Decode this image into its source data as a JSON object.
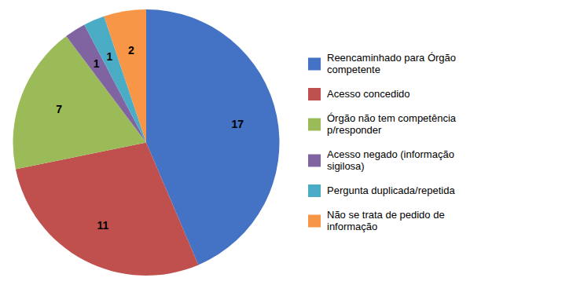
{
  "chart_data": {
    "type": "pie",
    "categories": [
      "Reencaminhado para Órgão\ncompetente",
      "Acesso concedido",
      "Órgão não tem competência\np/responder",
      "Acesso negado (informação\nsigilosa)",
      "Pergunta duplicada/repetida",
      "Não se trata de pedido de\ninformação"
    ],
    "values": [
      17,
      11,
      7,
      1,
      1,
      2
    ],
    "colors": [
      "#4472C4",
      "#C0504D",
      "#9BBB59",
      "#8064A2",
      "#4BACC6",
      "#F79646"
    ],
    "data_labels": true,
    "legend": "right"
  }
}
